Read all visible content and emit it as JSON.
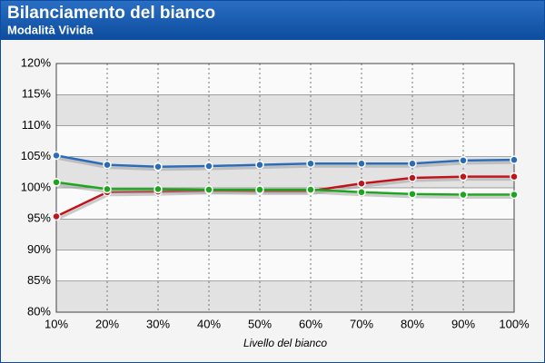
{
  "chart_data": {
    "type": "line",
    "title": "Bilanciamento del bianco",
    "subtitle": "Modalità Vivida",
    "x_label": "Livello del bianco",
    "categories": [
      "10%",
      "20%",
      "30%",
      "40%",
      "50%",
      "60%",
      "70%",
      "80%",
      "90%",
      "100%"
    ],
    "series": [
      {
        "color": "#2b6cb8",
        "values": [
          105.2,
          103.7,
          103.4,
          103.5,
          103.7,
          103.9,
          103.9,
          103.9,
          104.4,
          104.5
        ]
      },
      {
        "color": "#c0141c",
        "values": [
          95.4,
          99.3,
          99.4,
          99.6,
          99.5,
          99.5,
          100.7,
          101.6,
          101.8,
          101.8
        ]
      },
      {
        "color": "#1ea51e",
        "values": [
          100.9,
          99.8,
          99.8,
          99.7,
          99.7,
          99.7,
          99.3,
          99.0,
          98.9,
          98.9
        ]
      }
    ],
    "ylim": [
      80,
      120
    ],
    "yticks": [
      {
        "value": 80,
        "label": "80%"
      },
      {
        "value": 85,
        "label": "85%"
      },
      {
        "value": 90,
        "label": "90%"
      },
      {
        "value": 95,
        "label": "95%"
      },
      {
        "value": 100,
        "label": "100%"
      },
      {
        "value": 105,
        "label": "105%"
      },
      {
        "value": 110,
        "label": "110%"
      },
      {
        "value": 115,
        "label": "115%"
      },
      {
        "value": 120,
        "label": "120%"
      }
    ],
    "grid": true
  }
}
